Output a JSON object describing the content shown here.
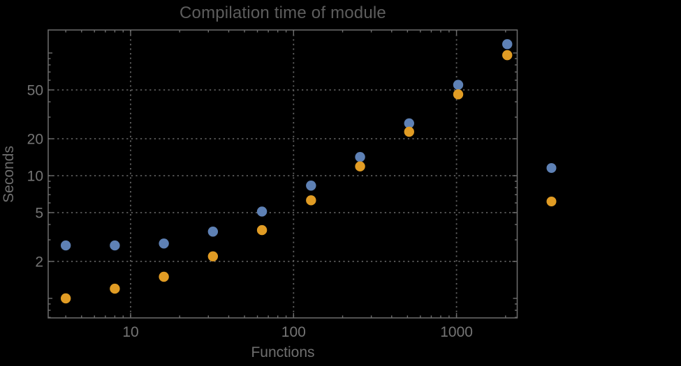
{
  "background_color": "#000000",
  "chart_data": {
    "type": "scatter",
    "title": "Compilation time of module",
    "xlabel": "Functions",
    "ylabel": "Seconds",
    "x_scale": "log",
    "y_scale": "log",
    "x": [
      4,
      8,
      16,
      32,
      64,
      128,
      256,
      512,
      1024,
      2048
    ],
    "series": [
      {
        "name": "series-1-blue",
        "color": "#5e81b5",
        "values": [
          2.7,
          2.7,
          2.8,
          3.5,
          5.1,
          8.3,
          14.2,
          26.7,
          55,
          118
        ]
      },
      {
        "name": "series-2-orange",
        "color": "#e19c24",
        "values": [
          1.0,
          1.2,
          1.5,
          2.2,
          3.6,
          6.3,
          11.9,
          22.8,
          46,
          96
        ]
      }
    ],
    "x_ticks": {
      "values": [
        10,
        100,
        1000
      ],
      "labels": [
        "10",
        "100",
        "1000"
      ]
    },
    "y_ticks": {
      "values": [
        2,
        5,
        10,
        20,
        50
      ],
      "labels": [
        "2",
        "5",
        "10",
        "20",
        "50"
      ],
      "unlabeled_major": [
        1,
        100
      ]
    },
    "x_range": [
      3.15,
      2370
    ],
    "y_range": [
      0.7,
      153
    ],
    "grid": {
      "style": "dotted",
      "on": true,
      "color": "#5e5e5e",
      "x_values": [
        10,
        100,
        1000
      ],
      "y_values": [
        2,
        5,
        10,
        20,
        50
      ]
    },
    "legend": {
      "position": "outside-right",
      "entries": [
        {
          "label": "",
          "marker_color": "#5e81b5"
        },
        {
          "label": "",
          "marker_color": "#e19c24"
        }
      ]
    },
    "frame_color": "#6e6e6e",
    "title_color": "#5d5d5d",
    "label_color": "#6f6f6f",
    "tick_label_color": "#747474"
  }
}
